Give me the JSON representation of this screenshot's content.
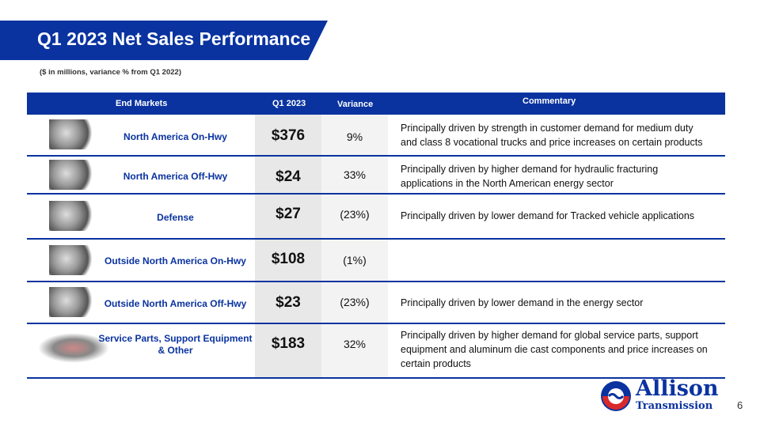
{
  "title": "Q1 2023 Net Sales Performance",
  "subtitle": "($ in millions, variance % from Q1 2022)",
  "headers": {
    "market": "End Markets",
    "q1": "Q1 2023",
    "variance": "Variance",
    "commentary": "Commentary"
  },
  "rows": [
    {
      "market": "North America On-Hwy",
      "value": "$376",
      "variance": "9%",
      "commentary": "Principally driven by strength in customer demand for medium duty and class 8 vocational trucks and price increases on certain products"
    },
    {
      "market": "North America Off-Hwy",
      "value": "$24",
      "variance": "33%",
      "commentary": "Principally driven by higher demand for hydraulic fracturing applications in the North American energy sector"
    },
    {
      "market": "Defense",
      "value": "$27",
      "variance": "(23%)",
      "commentary": "Principally driven by lower demand for Tracked vehicle applications"
    },
    {
      "market": "Outside North America On-Hwy",
      "value": "$108",
      "variance": "(1%)",
      "commentary": ""
    },
    {
      "market": "Outside North America Off-Hwy",
      "value": "$23",
      "variance": "(23%)",
      "commentary": "Principally driven by lower demand in the energy sector"
    },
    {
      "market": "Service Parts, Support Equipment & Other",
      "value": "$183",
      "variance": "32%",
      "commentary": "Principally driven by higher demand for global service parts, support equipment and aluminum die cast components and price increases on certain products"
    }
  ],
  "logo": {
    "line1": "Allison",
    "line2": "Transmission"
  },
  "page_number": "6"
}
